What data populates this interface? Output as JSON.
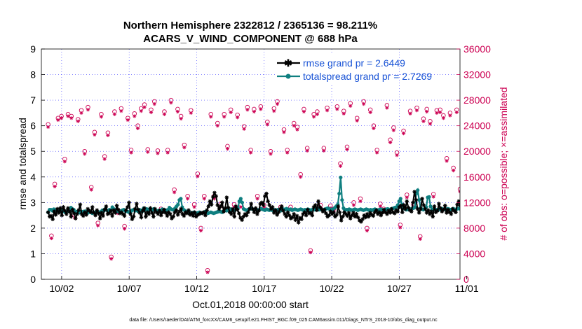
{
  "chart_data": {
    "type": "line",
    "title_line1": "Northern Hemisphere 2322812 / 2365136 = 98.211%",
    "title_line2": "ACARS_V_WIND_COMPONENT @ 688 hPa",
    "xlabel": "Oct.01,2018 00:00:00 start",
    "ylabel_left": "rmse and totalspread",
    "ylabel_right": "# of obs: o=possible; ×=assimilated",
    "footnote": "data file: /Users/raeder/DAI/ATM_forcXX/CAM6_setup/f.e21.FHIST_BGC.f09_025.CAM6assim.011/Diags_NTrS_2018-10/obs_diag_output.nc",
    "xlim": [
      0.5,
      31.5
    ],
    "x_ticks": [
      {
        "v": 2,
        "label": "10/02"
      },
      {
        "v": 7,
        "label": "10/07"
      },
      {
        "v": 12,
        "label": "10/12"
      },
      {
        "v": 17,
        "label": "10/17"
      },
      {
        "v": 22,
        "label": "10/22"
      },
      {
        "v": 27,
        "label": "10/27"
      },
      {
        "v": 32,
        "label": "11/01"
      }
    ],
    "ylim_left": [
      0,
      9
    ],
    "y_ticks_left": [
      "0",
      "1",
      "2",
      "3",
      "4",
      "5",
      "6",
      "7",
      "8",
      "9"
    ],
    "ylim_right": [
      0,
      36000
    ],
    "y_ticks_right": [
      "0",
      "4000",
      "8000",
      "12000",
      "16000",
      "20000",
      "24000",
      "28000",
      "32000",
      "36000"
    ],
    "colors": {
      "rmse": "#000000",
      "spread": "#0f7f80",
      "obs": "#cc0052",
      "legend_text": "#1a54d6",
      "axis_right": "#cc0052"
    },
    "legend": [
      {
        "label": "rmse grand pr = 2.6449",
        "series": "rmse"
      },
      {
        "label": "totalspread grand pr = 2.7269",
        "series": "spread"
      }
    ],
    "rmse": [
      2.62,
      2.45,
      2.48,
      2.35,
      2.65,
      2.52,
      2.75,
      2.6,
      2.78,
      2.5,
      2.82,
      2.68,
      2.55,
      2.78,
      2.65,
      2.45,
      2.72,
      2.58,
      2.38,
      2.55,
      2.7,
      2.92,
      2.55,
      2.48,
      2.62,
      2.52,
      2.75,
      2.68,
      2.62,
      2.82,
      2.6,
      2.5,
      2.7,
      2.58,
      2.38,
      2.6,
      2.48,
      2.72,
      2.85,
      2.55,
      2.58,
      2.68,
      2.48,
      2.7,
      2.6,
      2.88,
      2.72,
      2.58,
      2.62,
      2.55,
      2.48,
      2.7,
      2.82,
      3.0,
      2.55,
      2.35,
      2.45,
      2.75,
      2.95,
      2.72,
      2.6,
      2.42,
      2.68,
      2.78,
      2.45,
      2.62,
      2.55,
      2.78,
      2.6,
      2.45,
      2.75,
      2.62,
      2.55,
      2.68,
      2.5,
      2.62,
      2.72,
      2.6,
      2.48,
      2.62,
      2.55,
      2.38,
      2.45,
      2.62,
      2.7,
      2.52,
      2.65,
      2.75,
      2.55,
      2.48,
      2.62,
      2.58,
      2.7,
      2.52,
      2.6,
      2.48,
      2.62,
      2.45,
      2.52,
      2.55,
      2.6,
      2.58,
      2.62,
      2.5,
      2.7,
      2.85,
      3.05,
      2.92,
      3.22,
      3.38,
      3.25,
      2.9,
      2.75,
      2.85,
      3.0,
      2.65,
      2.78,
      3.2,
      2.8,
      2.62,
      2.55,
      2.75,
      2.45,
      2.85,
      2.72,
      2.58,
      2.4,
      2.32,
      2.45,
      2.55,
      2.5,
      2.62,
      2.75,
      2.95,
      2.75,
      2.62,
      2.78,
      2.55,
      2.68,
      2.95,
      3.0,
      2.9,
      3.25,
      3.35,
      3.05,
      2.9,
      2.75,
      2.82,
      2.6,
      2.7,
      2.52,
      2.62,
      2.75,
      2.85,
      2.68,
      2.55,
      2.45,
      2.62,
      2.5,
      2.38,
      2.42,
      2.55,
      2.32,
      2.48,
      2.22,
      2.4,
      2.35,
      2.55,
      2.62,
      2.5,
      2.72,
      2.58,
      2.6,
      2.5,
      2.82,
      2.9,
      2.7,
      3.05,
      2.82,
      2.75,
      2.65,
      2.72,
      2.58,
      2.45,
      2.5,
      2.65,
      2.55,
      2.62,
      2.45,
      2.52,
      2.85,
      2.62,
      2.3,
      2.45,
      2.62,
      2.55,
      2.48,
      2.6,
      2.38,
      2.5,
      2.6,
      2.45,
      2.55,
      2.42,
      2.3,
      2.25,
      2.35,
      2.5,
      2.42,
      2.55,
      2.45,
      2.6,
      2.52,
      2.48,
      2.62,
      2.7,
      2.55,
      2.62,
      2.5,
      2.6,
      2.72,
      2.62,
      2.55,
      2.68,
      2.6,
      2.75,
      2.62,
      2.58,
      2.7,
      2.65,
      2.82,
      2.88,
      2.62,
      2.9,
      2.75,
      3.05,
      2.8,
      2.7,
      2.65,
      3.0,
      3.42,
      3.1,
      2.75,
      2.6,
      2.75,
      3.15,
      2.9,
      2.75,
      2.6,
      2.7,
      2.55,
      2.65,
      2.45,
      2.85,
      2.62,
      2.68,
      2.95,
      2.78,
      2.65,
      2.72,
      2.88,
      2.6,
      2.72,
      2.62,
      2.55,
      2.75,
      2.68,
      2.62,
      2.92,
      3.05,
      2.88,
      2.75,
      2.7
    ],
    "spread": [
      2.62,
      2.72,
      2.72,
      2.68,
      2.74,
      2.7,
      2.72,
      2.68,
      2.65,
      2.66,
      2.7,
      2.66,
      2.62,
      2.64,
      2.7,
      2.66,
      2.8,
      2.75,
      2.72,
      2.62,
      2.64,
      2.66,
      2.6,
      2.62,
      2.64,
      2.65,
      2.66,
      2.62,
      2.6,
      2.64,
      2.62,
      2.58,
      2.6,
      2.62,
      2.64,
      2.6,
      2.62,
      2.64,
      2.7,
      2.68,
      2.75,
      2.7,
      2.66,
      2.72,
      2.7,
      2.82,
      2.75,
      2.7,
      2.72,
      2.65,
      2.62,
      2.66,
      2.7,
      2.72,
      2.68,
      2.66,
      2.64,
      2.62,
      2.65,
      2.7,
      2.72,
      2.68,
      2.7,
      2.66,
      2.72,
      2.7,
      2.66,
      2.78,
      2.72,
      2.75,
      2.7,
      2.74,
      2.72,
      2.7,
      2.75,
      2.72,
      2.68,
      2.66,
      2.7,
      2.66,
      2.74,
      2.72,
      2.68,
      2.7,
      2.72,
      2.8,
      2.75,
      2.72,
      2.72,
      2.78,
      2.85,
      2.92,
      3.1,
      3.15,
      2.82,
      2.72,
      2.68,
      2.64,
      2.6,
      2.62,
      2.58,
      2.6,
      2.62,
      2.6,
      2.58,
      2.6,
      2.62,
      2.58,
      2.6,
      2.62,
      2.64,
      2.6,
      2.58,
      2.6,
      2.62,
      2.6,
      2.58,
      2.6,
      2.62,
      2.64,
      2.66,
      2.64,
      2.62,
      2.66,
      2.7,
      2.68,
      2.72,
      2.66,
      2.74,
      2.7,
      2.72,
      2.7,
      2.76,
      2.78,
      3.05,
      3.15,
      3.0,
      2.75,
      2.72,
      2.7,
      2.72,
      2.75,
      2.76,
      2.75,
      2.72,
      2.74,
      2.72,
      2.7,
      2.72,
      2.76,
      2.74,
      2.72,
      2.7,
      2.74,
      2.72,
      2.7,
      2.72,
      2.7,
      2.68,
      2.72,
      2.7,
      2.72,
      2.7,
      2.68,
      2.72,
      2.74,
      2.72,
      2.76,
      2.74,
      2.72,
      2.74,
      2.7,
      2.72,
      2.74,
      2.72,
      2.7,
      2.72,
      2.74,
      2.72,
      2.7,
      2.72,
      2.7,
      2.74,
      2.72,
      2.7,
      2.72,
      2.74,
      2.72,
      2.76,
      2.75,
      2.72,
      2.74,
      2.72,
      2.7,
      2.74,
      2.76,
      2.78,
      2.75,
      2.72,
      2.74,
      2.75,
      2.8,
      2.86,
      2.92,
      3.35,
      3.98,
      3.1,
      2.78,
      2.7,
      2.72,
      2.72,
      2.74,
      2.72,
      2.7,
      2.72,
      2.74,
      2.72,
      2.7,
      2.72,
      2.74,
      2.72,
      2.7,
      2.72,
      2.74,
      2.72,
      2.7,
      2.72,
      2.7,
      2.72,
      2.74,
      2.72,
      2.7,
      2.72,
      2.74,
      2.72,
      2.7,
      2.72,
      2.74,
      2.75,
      2.72,
      2.74,
      2.76,
      2.78,
      2.8,
      2.82,
      2.9,
      3.05,
      3.15,
      2.92,
      2.78,
      2.75,
      2.72,
      2.74,
      2.72,
      2.74,
      2.76,
      2.78,
      2.82,
      3.35,
      3.48,
      3.1,
      2.8,
      2.74,
      2.72,
      2.76,
      2.82,
      3.2,
      3.22,
      2.85,
      2.72,
      2.75,
      2.74,
      2.72,
      2.7,
      2.74,
      2.72,
      2.76,
      2.72,
      2.74,
      2.72,
      2.76,
      2.74,
      2.72,
      2.74,
      2.76,
      2.72,
      2.74,
      2.76,
      2.78,
      2.74,
      2.72,
      2.75
    ],
    "obs_possible": [
      24200,
      6800,
      14900,
      25200,
      25500,
      18800,
      25800,
      25500,
      10000,
      25000,
      26400,
      20000,
      26900,
      14400,
      23000,
      8800,
      25800,
      19200,
      22900,
      3500,
      26200,
      10700,
      26700,
      8300,
      25200,
      20200,
      25900,
      24000,
      26700,
      27300,
      20300,
      26500,
      27800,
      20100,
      11000,
      26200,
      20200,
      28000,
      14000,
      26600,
      25500,
      21000,
      13000,
      26400,
      11700,
      16500,
      8000,
      13000,
      1400,
      25800,
      13000,
      24400,
      11800,
      25800,
      20800,
      26500,
      11700,
      25700,
      11700,
      23900,
      26900,
      20200,
      26600,
      13000,
      27000,
      11600,
      24600,
      20000,
      26700,
      27800,
      11300,
      23400,
      20200,
      11300,
      24400,
      23800,
      16400,
      26600,
      20500,
      4500,
      25800,
      26200,
      11600,
      20500,
      26800,
      11500,
      11000,
      27000,
      18100,
      26300,
      20700,
      27500,
      12000,
      25200,
      12600,
      27800,
      8000,
      26500,
      24000,
      20200,
      11800,
      11000,
      27200,
      21800,
      23700,
      19800,
      8500,
      23200,
      13200,
      26300,
      11700,
      26800,
      6700,
      25100,
      26600,
      24700,
      13300,
      26400,
      26500,
      25600,
      18900,
      26000,
      17400,
      26500,
      14100,
      0
    ],
    "obs_assimilated": [
      23800,
      6400,
      14500,
      24900,
      25200,
      18400,
      25500,
      25200,
      9600,
      24700,
      26000,
      19600,
      26500,
      14000,
      22600,
      8400,
      25400,
      18800,
      22500,
      3200,
      25800,
      10300,
      26300,
      7900,
      24900,
      19800,
      25500,
      23600,
      26300,
      26900,
      19900,
      26100,
      27400,
      19700,
      10600,
      25800,
      19800,
      27600,
      13600,
      26200,
      25100,
      20600,
      12600,
      26000,
      11300,
      16100,
      7600,
      12600,
      1100,
      25400,
      12600,
      24000,
      11400,
      25400,
      20400,
      26100,
      11300,
      25300,
      11300,
      23500,
      26500,
      19800,
      26200,
      12600,
      26600,
      11200,
      24200,
      19600,
      26300,
      27400,
      10900,
      23000,
      19800,
      10900,
      24000,
      23400,
      16000,
      26200,
      20100,
      4200,
      25400,
      25800,
      11200,
      20100,
      26400,
      11100,
      10600,
      26600,
      17700,
      25900,
      20300,
      27100,
      11600,
      24800,
      12200,
      27400,
      7600,
      26100,
      23600,
      19800,
      11400,
      10600,
      26800,
      21400,
      23300,
      19400,
      8100,
      22800,
      12800,
      25900,
      11300,
      26400,
      6300,
      24700,
      26200,
      24300,
      12900,
      26000,
      26100,
      25200,
      18500,
      25600,
      17000,
      26100,
      13700,
      0
    ]
  }
}
